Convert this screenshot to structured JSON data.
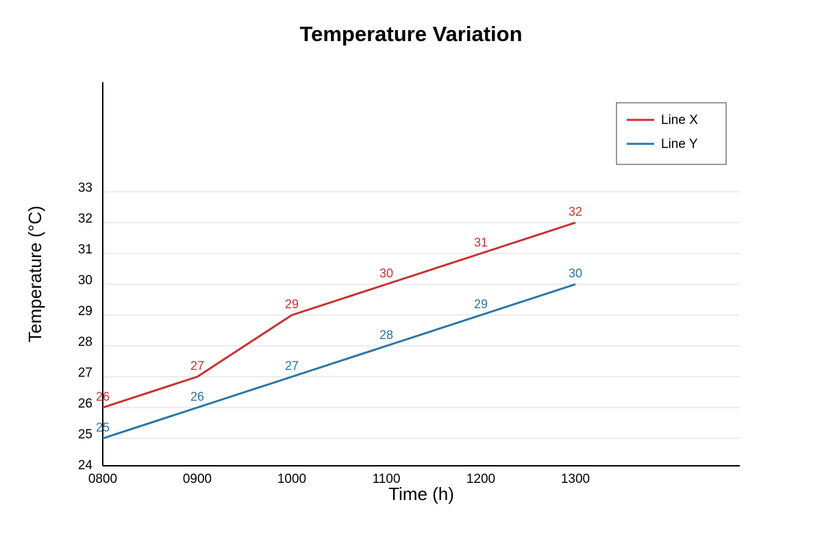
{
  "chart_data": {
    "type": "line",
    "title": "Temperature Variation",
    "xlabel": "Time (h)",
    "ylabel": "Temperature (°C)",
    "categories": [
      "0800",
      "0900",
      "1000",
      "1100",
      "1200",
      "1300"
    ],
    "y_ticks": [
      24,
      25,
      26,
      27,
      28,
      29,
      30,
      31,
      32,
      33
    ],
    "ylim": [
      24,
      33
    ],
    "grid": true,
    "legend_position": "top-right",
    "series": [
      {
        "name": "Line X",
        "color": "#c83232",
        "values": [
          26,
          27,
          29,
          30,
          31,
          32
        ]
      },
      {
        "name": "Line Y",
        "color": "#2a76a8",
        "values": [
          25,
          26,
          27,
          28,
          29,
          30
        ]
      }
    ]
  }
}
